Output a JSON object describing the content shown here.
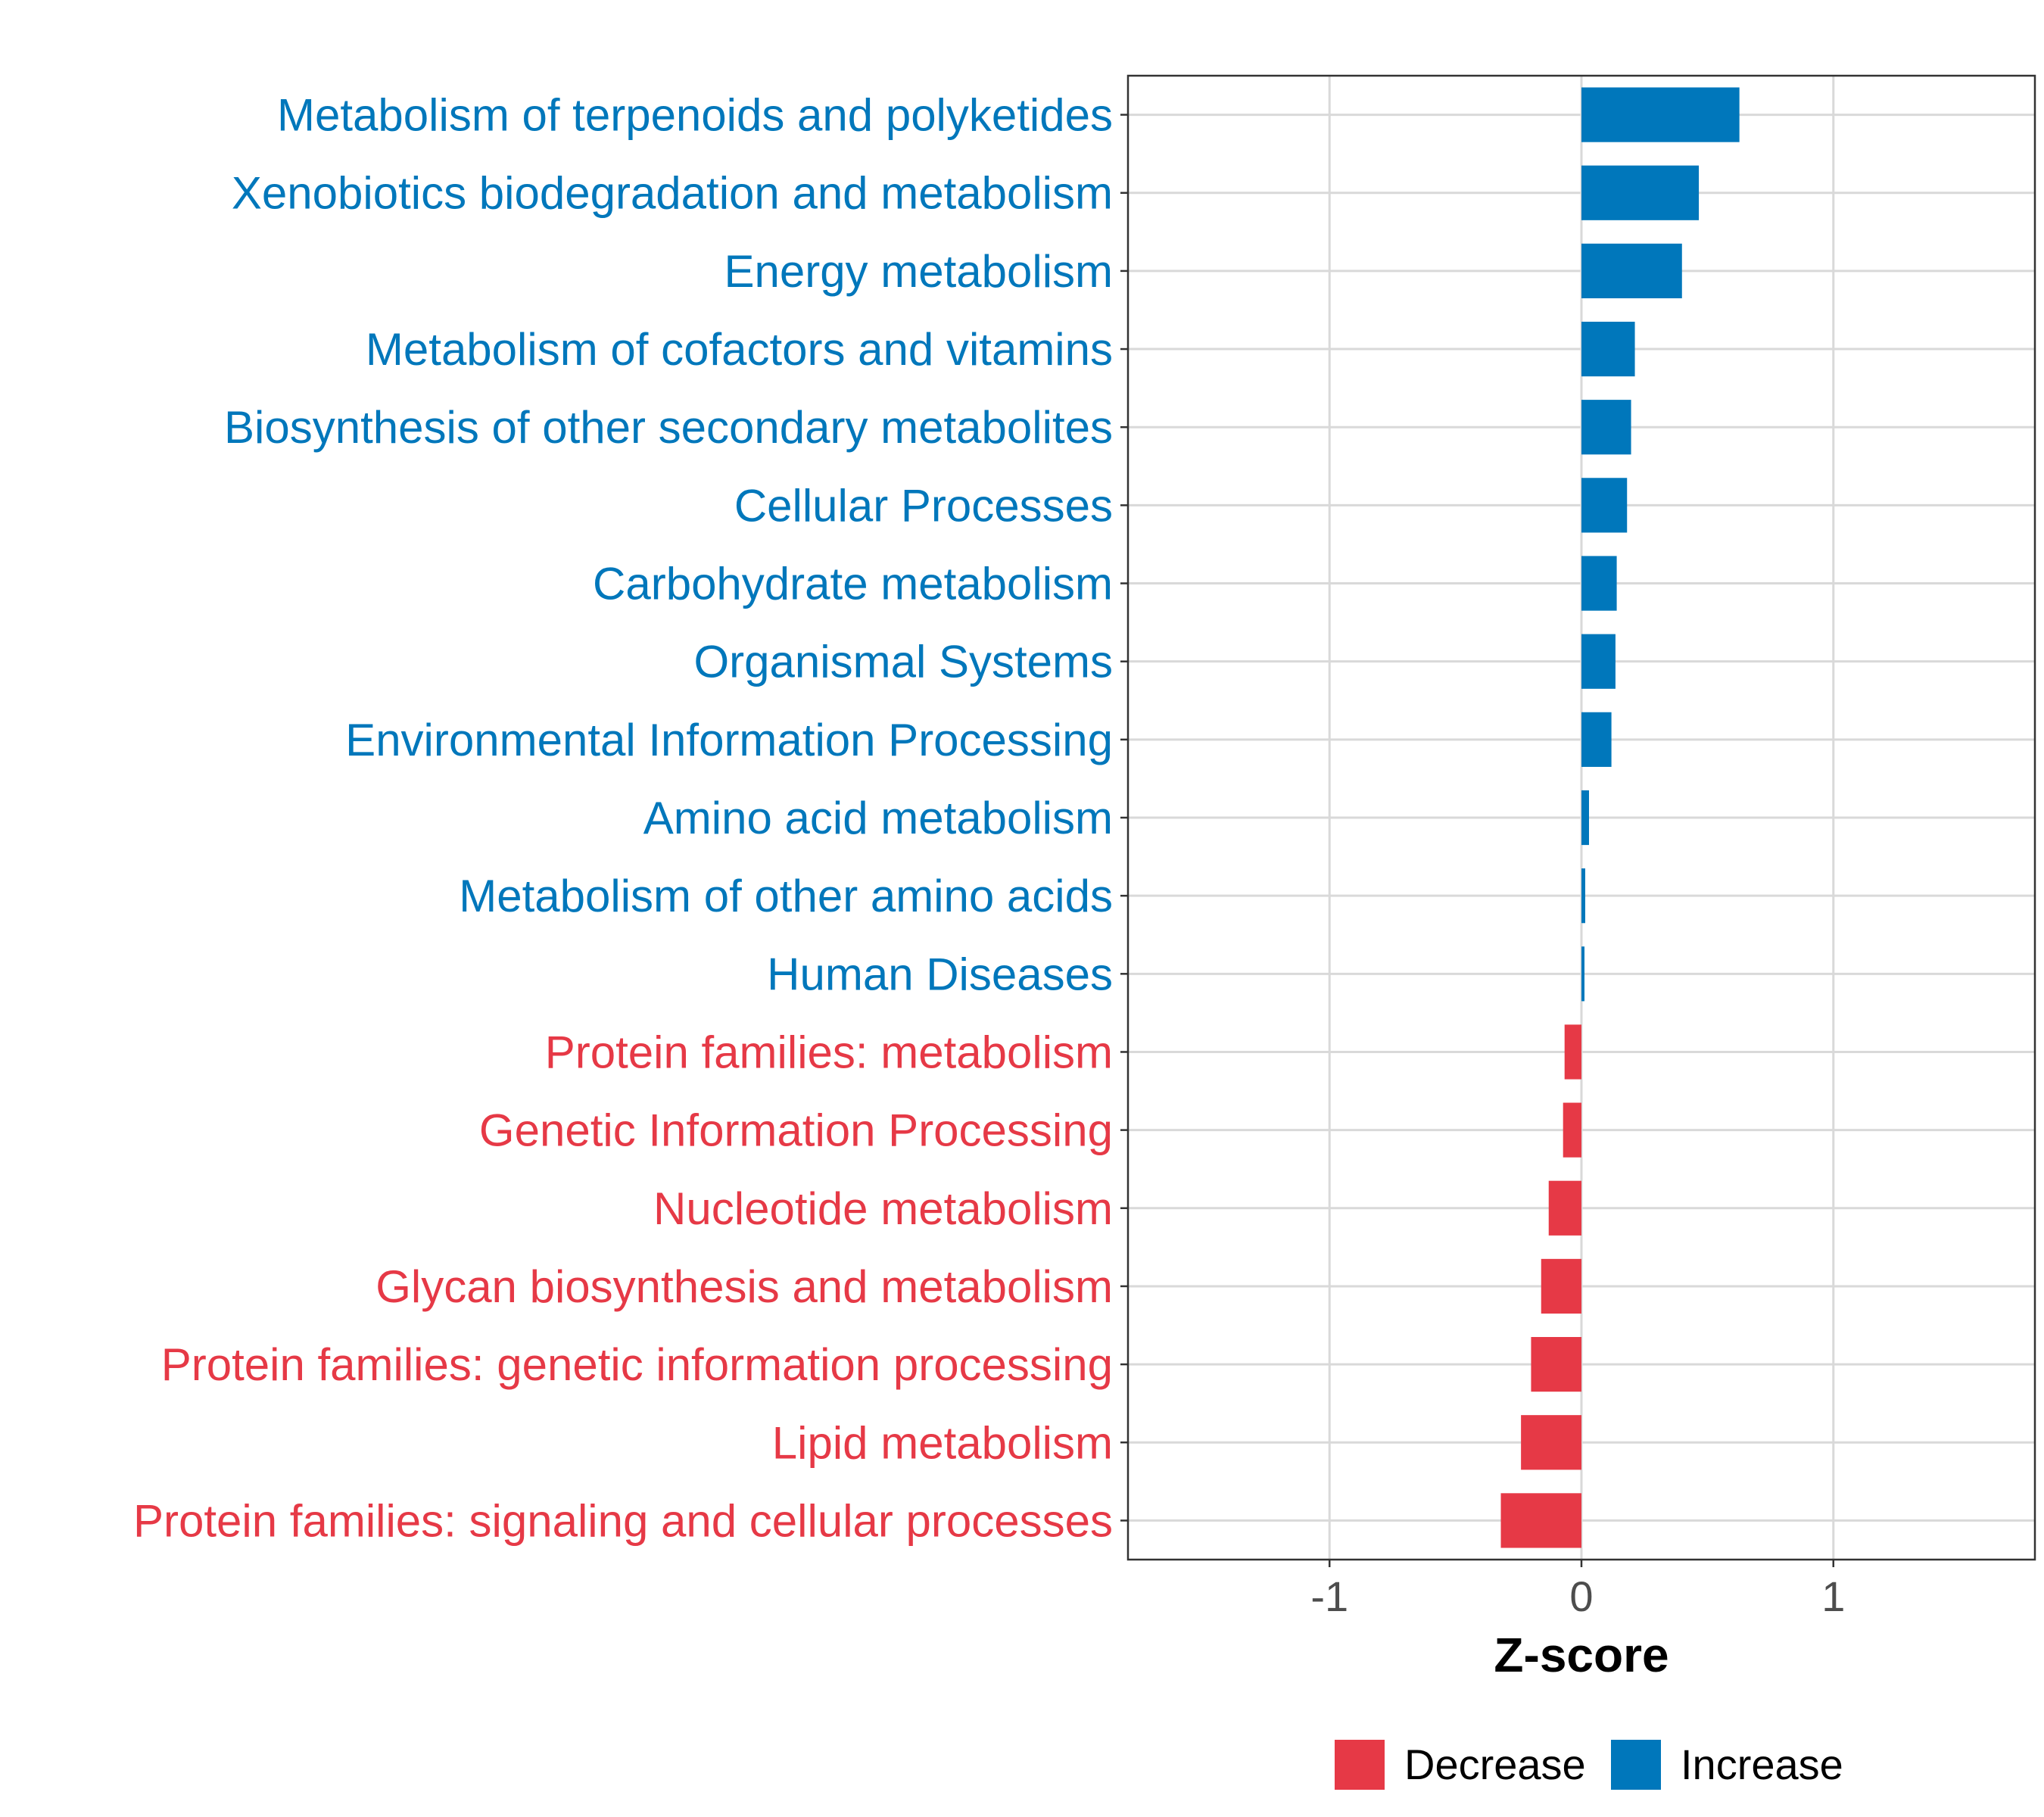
{
  "colors": {
    "Decrease": "#E63946",
    "Increase": "#0077BB",
    "grid": "#D9D9D9",
    "tick_text": "#4D4D4D"
  },
  "chart_data": {
    "type": "bar",
    "orientation": "horizontal",
    "title": "",
    "xlabel": "Z-score",
    "ylabel": "",
    "xlim": [
      -1.8,
      1.8
    ],
    "xticks": [
      -1,
      0,
      1
    ],
    "xtick_labels": [
      "-1",
      "0",
      "1"
    ],
    "grid": true,
    "legend": {
      "placement": "bottom",
      "entries": [
        "Decrease",
        "Increase"
      ]
    },
    "categories": [
      "Metabolism of terpenoids and polyketides",
      "Xenobiotics biodegradation and metabolism",
      "Energy metabolism",
      "Metabolism of cofactors and vitamins",
      "Biosynthesis of other secondary metabolites",
      "Cellular Processes",
      "Carbohydrate metabolism",
      "Organismal Systems",
      "Environmental Information Processing",
      "Amino acid metabolism",
      "Metabolism of other amino acids",
      "Human Diseases",
      "Protein families: metabolism",
      "Genetic Information Processing",
      "Nucleotide metabolism",
      "Glycan biosynthesis and metabolism",
      "Protein families: genetic information processing",
      "Lipid metabolism",
      "Protein families: signaling and cellular processes"
    ],
    "values": [
      0.627,
      0.466,
      0.399,
      0.212,
      0.197,
      0.181,
      0.14,
      0.135,
      0.119,
      0.03,
      0.015,
      0.012,
      -0.067,
      -0.073,
      -0.13,
      -0.16,
      -0.2,
      -0.24,
      -0.32
    ],
    "groups": [
      "Increase",
      "Increase",
      "Increase",
      "Increase",
      "Increase",
      "Increase",
      "Increase",
      "Increase",
      "Increase",
      "Increase",
      "Increase",
      "Increase",
      "Decrease",
      "Decrease",
      "Decrease",
      "Decrease",
      "Decrease",
      "Decrease",
      "Decrease"
    ]
  }
}
